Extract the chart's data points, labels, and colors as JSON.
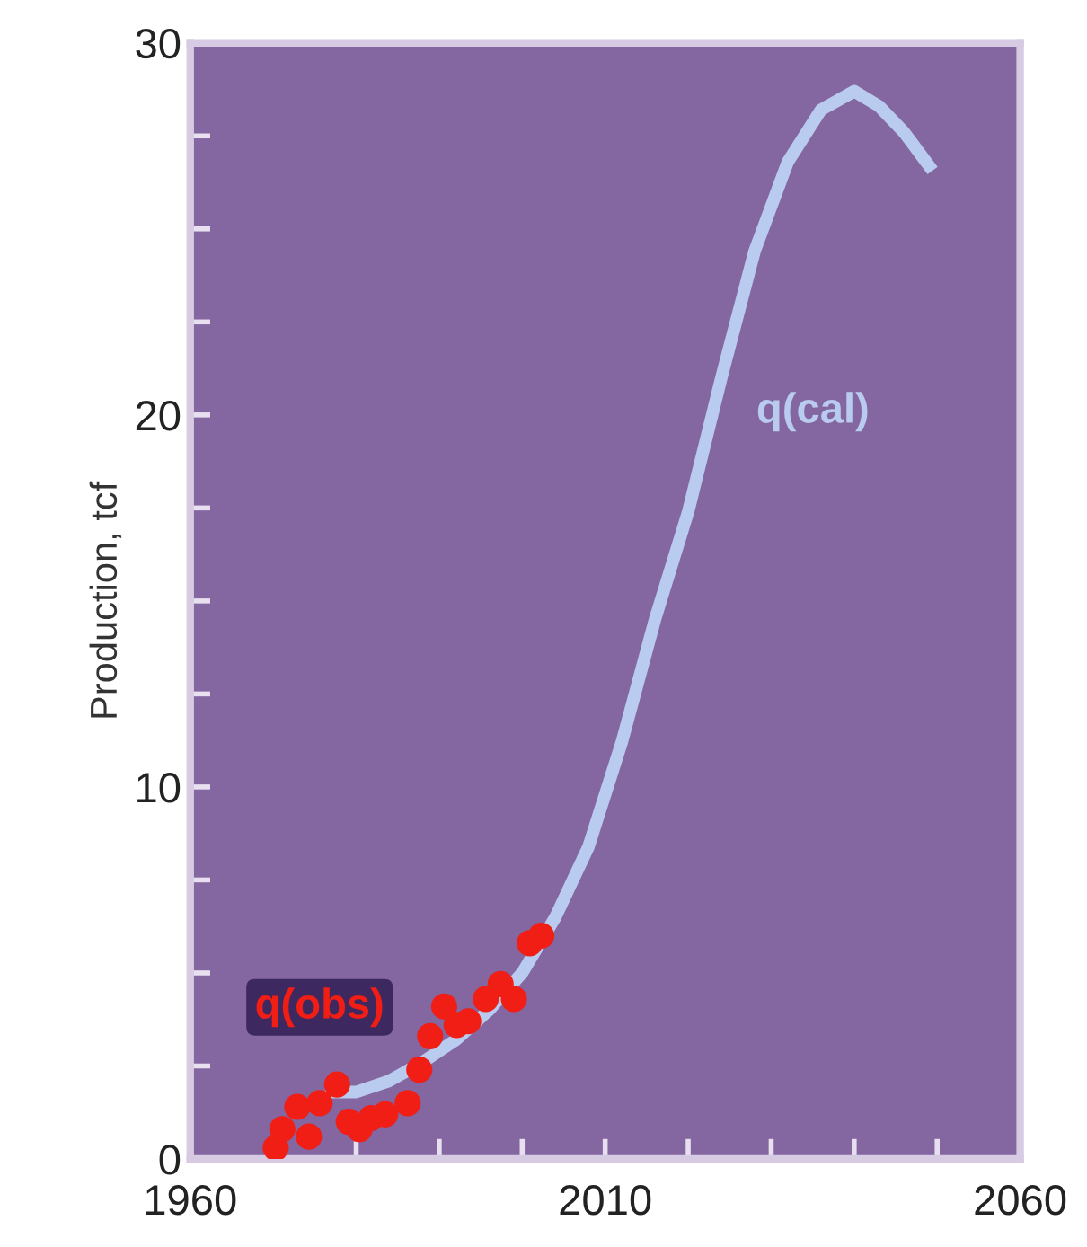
{
  "chart_data": {
    "type": "line",
    "ylabel": "Production, tcf",
    "xlim": [
      1960,
      2060
    ],
    "ylim": [
      0,
      30
    ],
    "xticks": [
      1960,
      {
        "value": 1970,
        "label": null
      },
      {
        "value": 1980,
        "label": null
      },
      {
        "value": 1990,
        "label": null
      },
      {
        "value": 2000,
        "label": null
      },
      2010,
      {
        "value": 2020,
        "label": null
      },
      {
        "value": 2030,
        "label": null
      },
      {
        "value": 2040,
        "label": null
      },
      {
        "value": 2050,
        "label": null
      },
      2060
    ],
    "yticks": [
      0,
      {
        "value": 2.5,
        "label": null
      },
      {
        "value": 5,
        "label": null
      },
      {
        "value": 7.5,
        "label": null
      },
      10,
      {
        "value": 12.5,
        "label": null
      },
      {
        "value": 15,
        "label": null
      },
      {
        "value": 17.5,
        "label": null
      },
      20,
      {
        "value": 22.5,
        "label": null
      },
      {
        "value": 25,
        "label": null
      },
      {
        "value": 27.5,
        "label": null
      },
      30
    ],
    "grid": false,
    "legend": false,
    "series": [
      {
        "name": "q(cal)",
        "color": "#b9cbee",
        "marker": "none",
        "line_style": "solid",
        "x": [
          1977,
          1980,
          1984,
          1988,
          1992,
          1996,
          2000,
          2004,
          2008,
          2012,
          2016,
          2020,
          2024,
          2028,
          2032,
          2036,
          2040,
          2043,
          2046,
          2049
        ],
        "values": [
          1.8,
          1.8,
          2.1,
          2.6,
          3.2,
          4.0,
          5.0,
          6.5,
          8.4,
          11.2,
          14.5,
          17.4,
          21.0,
          24.4,
          26.8,
          28.2,
          28.7,
          28.3,
          27.6,
          26.7
        ]
      },
      {
        "name": "q(obs)",
        "type": "scatter",
        "color": "#f01e14",
        "marker": "circle",
        "x": [
          1970.3,
          1971.1,
          1972.9,
          1974.3,
          1975.6,
          1977.7,
          1979.1,
          1980.4,
          1981.8,
          1983.5,
          1986.2,
          1987.6,
          1988.9,
          1990.6,
          1992.1,
          1993.5,
          1995.6,
          1997.4,
          1999,
          2000.9,
          2002.3
        ],
        "values": [
          0.3,
          0.8,
          1.4,
          0.6,
          1.5,
          2.0,
          1.0,
          0.8,
          1.1,
          1.2,
          1.5,
          2.4,
          3.3,
          4.1,
          3.6,
          3.7,
          4.3,
          4.7,
          4.3,
          5.8,
          6.0
        ]
      }
    ]
  }
}
